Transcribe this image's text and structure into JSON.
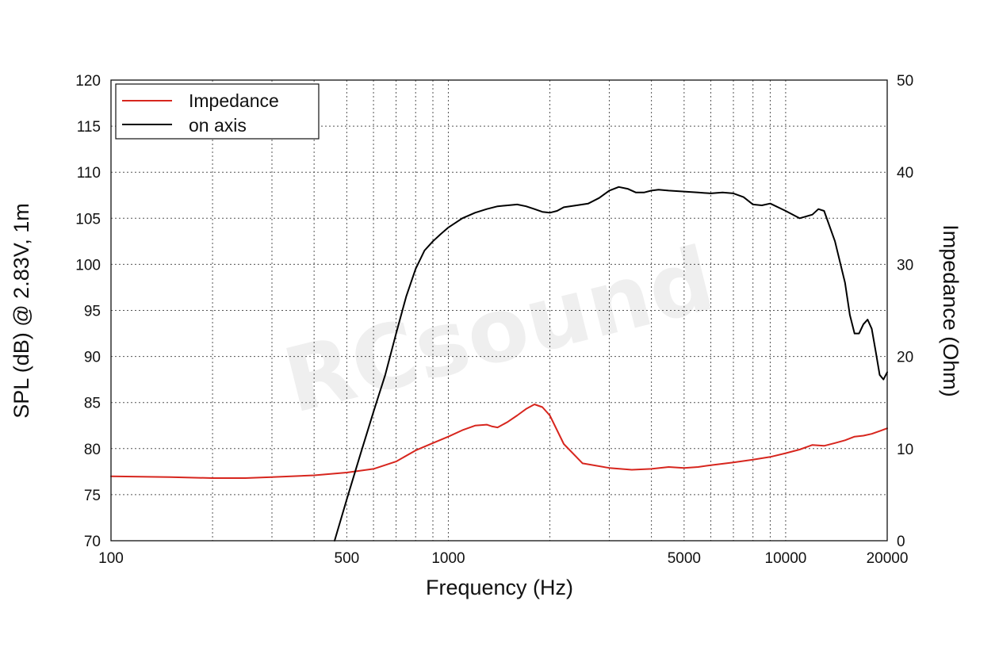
{
  "watermark": "RCsound",
  "colors": {
    "impedance": "#d7261e",
    "on_axis": "#000000",
    "grid": "#555555"
  },
  "chart_data": {
    "type": "line",
    "xlabel": "Frequency (Hz)",
    "ylabel": "SPL (dB) @ 2.83V, 1m",
    "ylabel_right": "Impedance (Ohm)",
    "xscale": "log",
    "xlim": [
      100,
      20000
    ],
    "ylim": [
      70,
      120
    ],
    "ylim_right": [
      0,
      50
    ],
    "x_ticks": [
      100,
      500,
      1000,
      5000,
      10000,
      20000
    ],
    "x_tick_labels": [
      "100",
      "500",
      "1000",
      "5000",
      "10000",
      "20000"
    ],
    "y_ticks": [
      70,
      75,
      80,
      85,
      90,
      95,
      100,
      105,
      110,
      115,
      120
    ],
    "y_tick_labels": [
      "70",
      "75",
      "80",
      "85",
      "90",
      "95",
      "100",
      "105",
      "110",
      "115",
      "120"
    ],
    "y_ticks_right": [
      0,
      10,
      20,
      30,
      40,
      50
    ],
    "y_tick_labels_right": [
      "0",
      "10",
      "20",
      "30",
      "40",
      "50"
    ],
    "grid": true,
    "legend": "top-left",
    "series": [
      {
        "name": "Impedance",
        "axis": "right",
        "color": "#d7261e",
        "x": [
          100,
          150,
          200,
          250,
          300,
          400,
          500,
          600,
          700,
          800,
          900,
          1000,
          1100,
          1200,
          1300,
          1350,
          1400,
          1500,
          1600,
          1700,
          1800,
          1900,
          2000,
          2200,
          2500,
          3000,
          3500,
          4000,
          4500,
          5000,
          5500,
          6000,
          7000,
          8000,
          9000,
          10000,
          11000,
          12000,
          13000,
          14000,
          15000,
          16000,
          17000,
          18000,
          19000,
          20000
        ],
        "y": [
          7.0,
          6.9,
          6.8,
          6.8,
          6.9,
          7.1,
          7.4,
          7.8,
          8.6,
          9.8,
          10.6,
          11.3,
          12.0,
          12.5,
          12.6,
          12.4,
          12.3,
          12.9,
          13.6,
          14.3,
          14.8,
          14.5,
          13.6,
          10.5,
          8.4,
          7.9,
          7.7,
          7.8,
          8.0,
          7.9,
          8.0,
          8.2,
          8.5,
          8.8,
          9.1,
          9.5,
          9.9,
          10.4,
          10.3,
          10.6,
          10.9,
          11.3,
          11.4,
          11.6,
          11.9,
          12.2
        ]
      },
      {
        "name": "on axis",
        "axis": "left",
        "color": "#000000",
        "x": [
          460,
          500,
          550,
          600,
          650,
          700,
          750,
          800,
          850,
          900,
          950,
          1000,
          1100,
          1200,
          1300,
          1400,
          1500,
          1600,
          1700,
          1800,
          1900,
          2000,
          2100,
          2200,
          2400,
          2600,
          2800,
          3000,
          3200,
          3400,
          3600,
          3800,
          4000,
          4200,
          4500,
          5000,
          5500,
          6000,
          6500,
          7000,
          7500,
          8000,
          8500,
          9000,
          10000,
          11000,
          12000,
          12500,
          13000,
          14000,
          15000,
          15500,
          16000,
          16500,
          17000,
          17500,
          18000,
          18500,
          19000,
          19500,
          20000
        ],
        "y": [
          70.0,
          74.5,
          79.5,
          84.0,
          88.0,
          92.5,
          96.5,
          99.5,
          101.5,
          102.5,
          103.3,
          104.0,
          105.0,
          105.6,
          106.0,
          106.3,
          106.4,
          106.5,
          106.3,
          106.0,
          105.7,
          105.6,
          105.8,
          106.2,
          106.4,
          106.6,
          107.2,
          108.0,
          108.4,
          108.2,
          107.8,
          107.8,
          108.0,
          108.1,
          108.0,
          107.9,
          107.8,
          107.7,
          107.8,
          107.7,
          107.3,
          106.5,
          106.4,
          106.6,
          105.8,
          105.0,
          105.4,
          106.0,
          105.8,
          102.5,
          98.0,
          94.5,
          92.5,
          92.5,
          93.5,
          94.0,
          93.0,
          90.5,
          88.0,
          87.5,
          88.3
        ]
      }
    ]
  }
}
